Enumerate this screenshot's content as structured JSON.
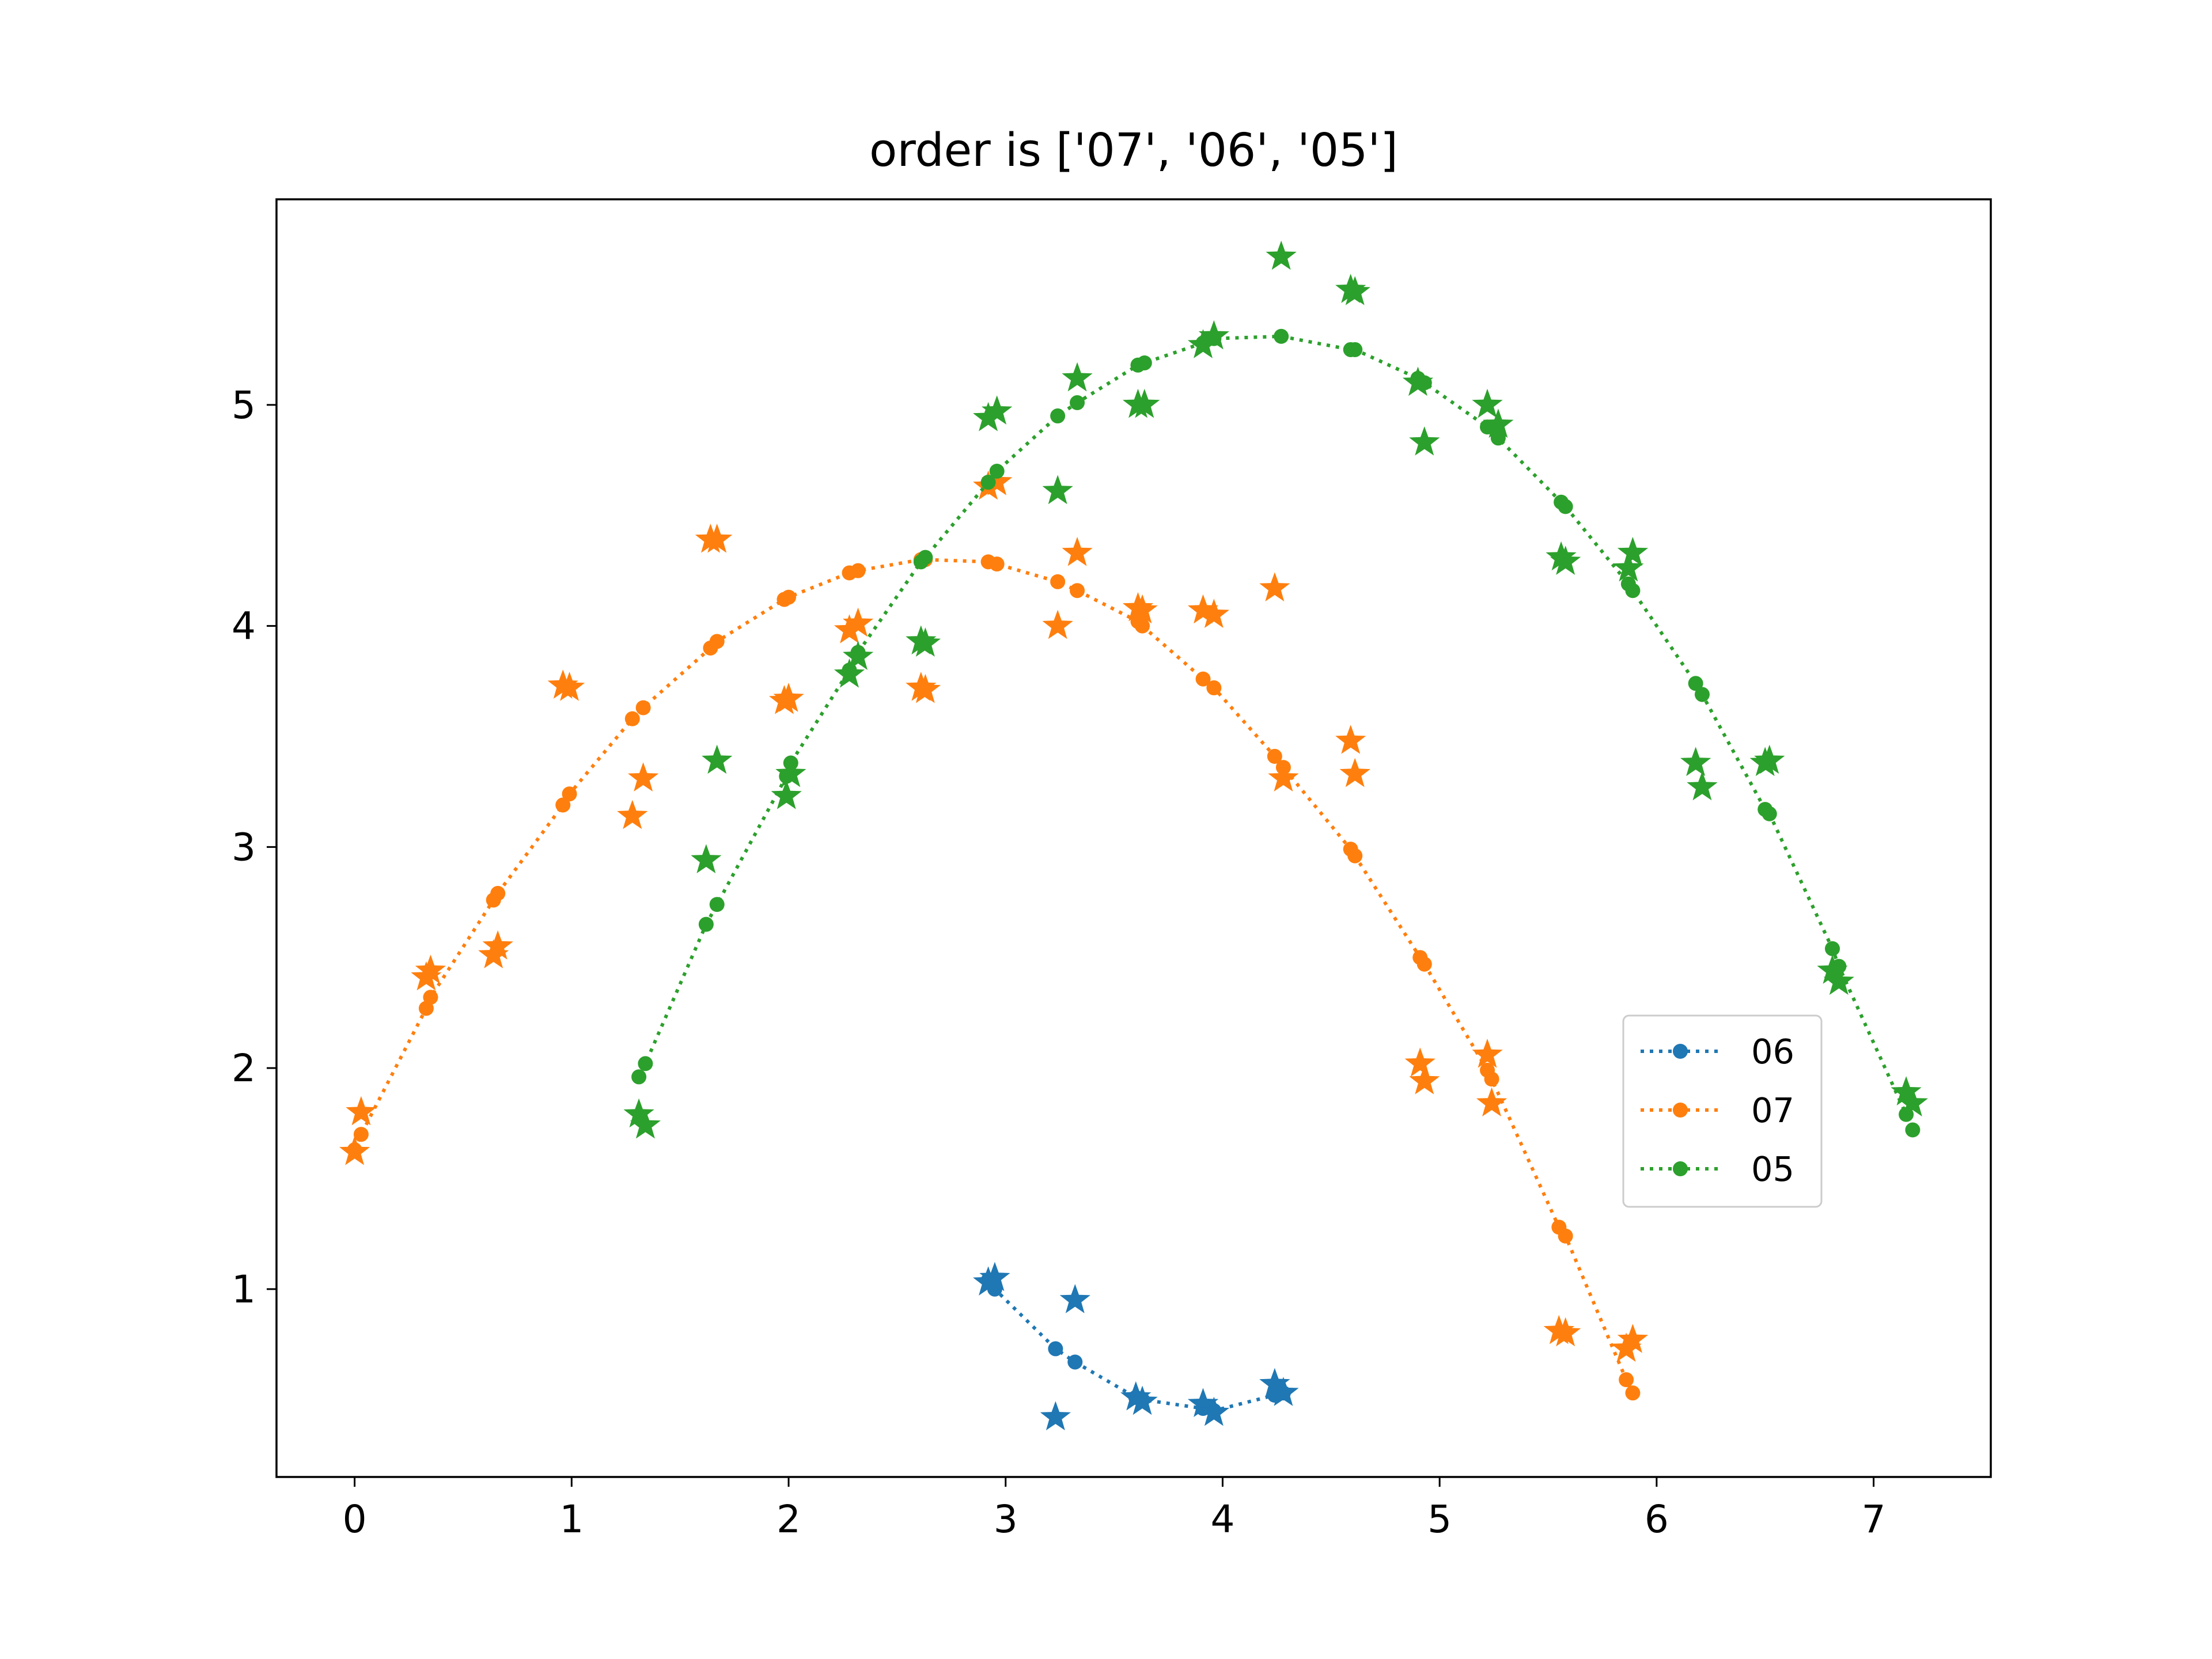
{
  "chart_data": {
    "type": "scatter",
    "title": "order is ['07', '06', '05']",
    "xlabel": "",
    "ylabel": "",
    "xlim": [
      -0.36,
      7.54
    ],
    "ylim": [
      0.15,
      5.93
    ],
    "xticks": [
      "0",
      "1",
      "2",
      "3",
      "4",
      "5",
      "6",
      "7"
    ],
    "yticks": [
      "1",
      "2",
      "3",
      "4",
      "5"
    ],
    "grid": false,
    "legend_position": "center-right",
    "legend": [
      "06",
      "07",
      "05"
    ],
    "series": [
      {
        "name": "06",
        "color": "#1f77b4",
        "fit_line": [
          [
            2.92,
            1.04
          ],
          [
            2.95,
            1.0
          ],
          [
            3.23,
            0.73
          ],
          [
            3.32,
            0.67
          ],
          [
            3.6,
            0.51
          ],
          [
            3.63,
            0.5
          ],
          [
            3.91,
            0.46
          ],
          [
            3.96,
            0.45
          ],
          [
            4.24,
            0.52
          ],
          [
            4.28,
            0.53
          ]
        ],
        "observed": [
          [
            2.92,
            1.03
          ],
          [
            2.95,
            1.05
          ],
          [
            3.23,
            0.42
          ],
          [
            3.32,
            0.95
          ],
          [
            3.6,
            0.51
          ],
          [
            3.63,
            0.49
          ],
          [
            3.91,
            0.48
          ],
          [
            3.96,
            0.44
          ],
          [
            4.24,
            0.57
          ],
          [
            4.28,
            0.53
          ]
        ]
      },
      {
        "name": "07",
        "color": "#ff7f0e",
        "fit_line": [
          [
            0.0,
            1.63
          ],
          [
            0.03,
            1.7
          ],
          [
            0.33,
            2.27
          ],
          [
            0.35,
            2.32
          ],
          [
            0.64,
            2.76
          ],
          [
            0.66,
            2.79
          ],
          [
            0.96,
            3.19
          ],
          [
            0.99,
            3.24
          ],
          [
            1.28,
            3.58
          ],
          [
            1.33,
            3.63
          ],
          [
            1.64,
            3.9
          ],
          [
            1.67,
            3.93
          ],
          [
            1.98,
            4.12
          ],
          [
            2.0,
            4.13
          ],
          [
            2.28,
            4.24
          ],
          [
            2.32,
            4.25
          ],
          [
            2.61,
            4.3
          ],
          [
            2.63,
            4.3
          ],
          [
            2.92,
            4.29
          ],
          [
            2.96,
            4.28
          ],
          [
            3.24,
            4.2
          ],
          [
            3.33,
            4.16
          ],
          [
            3.61,
            4.02
          ],
          [
            3.63,
            4.0
          ],
          [
            3.91,
            3.76
          ],
          [
            3.96,
            3.72
          ],
          [
            4.24,
            3.41
          ],
          [
            4.28,
            3.36
          ],
          [
            4.59,
            2.99
          ],
          [
            4.61,
            2.96
          ],
          [
            4.91,
            2.5
          ],
          [
            4.93,
            2.47
          ],
          [
            5.22,
            1.99
          ],
          [
            5.24,
            1.95
          ],
          [
            5.55,
            1.28
          ],
          [
            5.58,
            1.24
          ],
          [
            5.86,
            0.59
          ],
          [
            5.89,
            0.53
          ]
        ],
        "observed": [
          [
            0.0,
            1.62
          ],
          [
            0.03,
            1.8
          ],
          [
            0.33,
            2.41
          ],
          [
            0.35,
            2.44
          ],
          [
            0.64,
            2.51
          ],
          [
            0.66,
            2.55
          ],
          [
            0.96,
            3.73
          ],
          [
            0.99,
            3.72
          ],
          [
            1.28,
            3.14
          ],
          [
            1.33,
            3.31
          ],
          [
            1.64,
            4.39
          ],
          [
            1.67,
            4.39
          ],
          [
            1.98,
            3.66
          ],
          [
            2.0,
            3.67
          ],
          [
            2.28,
            3.98
          ],
          [
            2.32,
            4.01
          ],
          [
            2.61,
            3.72
          ],
          [
            2.63,
            3.71
          ],
          [
            2.92,
            4.63
          ],
          [
            2.96,
            4.65
          ],
          [
            3.24,
            4.0
          ],
          [
            3.33,
            4.33
          ],
          [
            3.61,
            4.08
          ],
          [
            3.63,
            4.07
          ],
          [
            3.91,
            4.07
          ],
          [
            3.96,
            4.05
          ],
          [
            4.24,
            4.17
          ],
          [
            4.28,
            3.31
          ],
          [
            4.59,
            3.48
          ],
          [
            4.61,
            3.33
          ],
          [
            4.91,
            2.02
          ],
          [
            4.93,
            1.94
          ],
          [
            5.22,
            2.06
          ],
          [
            5.24,
            1.84
          ],
          [
            5.55,
            0.81
          ],
          [
            5.58,
            0.8
          ],
          [
            5.86,
            0.73
          ],
          [
            5.89,
            0.77
          ]
        ]
      },
      {
        "name": "05",
        "color": "#2ca02c",
        "fit_line": [
          [
            1.31,
            1.96
          ],
          [
            1.34,
            2.02
          ],
          [
            1.62,
            2.65
          ],
          [
            1.67,
            2.74
          ],
          [
            1.99,
            3.32
          ],
          [
            2.01,
            3.38
          ],
          [
            2.28,
            3.8
          ],
          [
            2.32,
            3.88
          ],
          [
            2.61,
            4.29
          ],
          [
            2.63,
            4.31
          ],
          [
            2.92,
            4.65
          ],
          [
            2.96,
            4.7
          ],
          [
            3.24,
            4.95
          ],
          [
            3.33,
            5.01
          ],
          [
            3.61,
            5.18
          ],
          [
            3.64,
            5.19
          ],
          [
            3.91,
            5.28
          ],
          [
            3.96,
            5.3
          ],
          [
            4.27,
            5.31
          ],
          [
            4.59,
            5.25
          ],
          [
            4.61,
            5.25
          ],
          [
            4.9,
            5.12
          ],
          [
            4.93,
            5.1
          ],
          [
            5.22,
            4.9
          ],
          [
            5.27,
            4.85
          ],
          [
            5.56,
            4.56
          ],
          [
            5.58,
            4.54
          ],
          [
            5.87,
            4.19
          ],
          [
            5.89,
            4.16
          ],
          [
            6.18,
            3.74
          ],
          [
            6.21,
            3.69
          ],
          [
            6.5,
            3.17
          ],
          [
            6.52,
            3.15
          ],
          [
            6.81,
            2.54
          ],
          [
            6.84,
            2.46
          ],
          [
            7.15,
            1.79
          ],
          [
            7.18,
            1.72
          ]
        ],
        "observed": [
          [
            1.31,
            1.79
          ],
          [
            1.34,
            1.74
          ],
          [
            1.62,
            2.94
          ],
          [
            1.67,
            3.39
          ],
          [
            1.99,
            3.23
          ],
          [
            2.01,
            3.33
          ],
          [
            2.28,
            3.78
          ],
          [
            2.32,
            3.86
          ],
          [
            2.61,
            3.93
          ],
          [
            2.63,
            3.92
          ],
          [
            2.92,
            4.94
          ],
          [
            2.96,
            4.97
          ],
          [
            3.24,
            4.61
          ],
          [
            3.33,
            5.12
          ],
          [
            3.61,
            5.0
          ],
          [
            3.64,
            5.0
          ],
          [
            3.91,
            5.27
          ],
          [
            3.96,
            5.31
          ],
          [
            4.27,
            5.67
          ],
          [
            4.59,
            5.52
          ],
          [
            4.61,
            5.51
          ],
          [
            4.9,
            5.1
          ],
          [
            4.93,
            4.83
          ],
          [
            5.22,
            5.0
          ],
          [
            5.27,
            4.91
          ],
          [
            5.56,
            4.31
          ],
          [
            5.58,
            4.29
          ],
          [
            5.87,
            4.26
          ],
          [
            5.89,
            4.33
          ],
          [
            6.18,
            3.38
          ],
          [
            6.21,
            3.27
          ],
          [
            6.5,
            3.38
          ],
          [
            6.52,
            3.39
          ],
          [
            6.81,
            2.44
          ],
          [
            6.84,
            2.39
          ],
          [
            7.15,
            1.89
          ],
          [
            7.18,
            1.84
          ]
        ]
      }
    ]
  }
}
